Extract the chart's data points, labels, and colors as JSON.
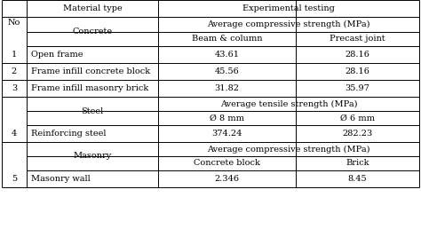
{
  "title_col1": "Material type",
  "title_col2": "Experimental testing",
  "col_no": "No",
  "header_row1_col2": "Average compressive strength (MPa)",
  "header_row2_col2a": "Beam & column",
  "header_row2_col2b": "Precast joint",
  "concrete_label": "Concrete",
  "steel_label": "Steel",
  "masonry_label": "Masonry",
  "steel_header_col2": "Average tensile strength (MPa)",
  "steel_sub_col2a": "Ø 8 mm",
  "steel_sub_col2b": "Ø 6 mm",
  "masonry_header_col2": "Average compressive strength (MPa)",
  "masonry_sub_col2a": "Concrete block",
  "masonry_sub_col2b": "Brick",
  "rows": [
    {
      "no": "1",
      "name": "Open frame",
      "val1": "43.61",
      "val2": "28.16"
    },
    {
      "no": "2",
      "name": "Frame infill concrete block",
      "val1": "45.56",
      "val2": "28.16"
    },
    {
      "no": "3",
      "name": "Frame infill masonry brick",
      "val1": "31.82",
      "val2": "35.97"
    },
    {
      "no": "4",
      "name": "Reinforcing steel",
      "val1": "374.24",
      "val2": "282.23"
    },
    {
      "no": "5",
      "name": "Masonry wall",
      "val1": "2.346",
      "val2": "8.45"
    }
  ],
  "bg_color": "#ffffff",
  "line_color": "#000000",
  "font_size": 7.0
}
